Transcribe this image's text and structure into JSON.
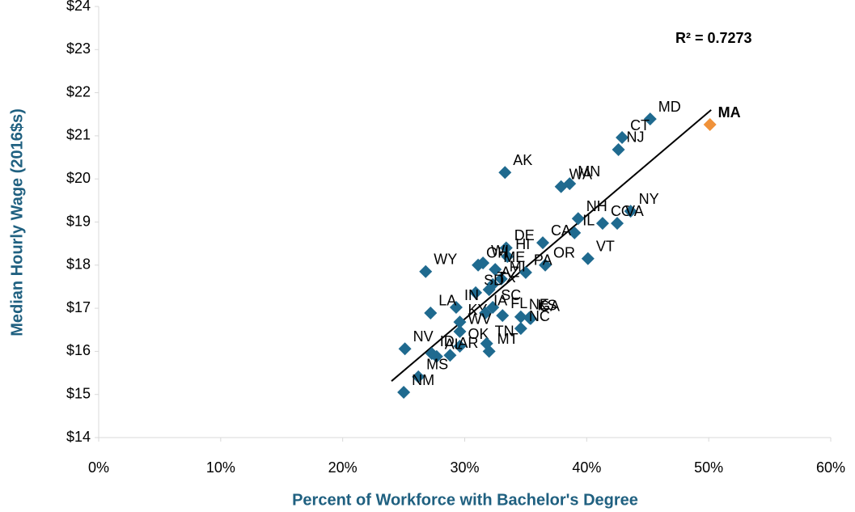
{
  "chart_data": {
    "type": "scatter",
    "xlabel": "Percent of Workforce with Bachelor's Degree",
    "ylabel": "Median Hourly Wage (2016$s)",
    "annotation": "R² = 0.7273",
    "xlim": [
      0,
      60
    ],
    "ylim": [
      14,
      24
    ],
    "xticks": [
      {
        "value": 0,
        "label": "0%"
      },
      {
        "value": 10,
        "label": "10%"
      },
      {
        "value": 20,
        "label": "20%"
      },
      {
        "value": 30,
        "label": "30%"
      },
      {
        "value": 40,
        "label": "40%"
      },
      {
        "value": 50,
        "label": "50%"
      },
      {
        "value": 60,
        "label": "60%"
      }
    ],
    "yticks": [
      {
        "value": 14,
        "label": "$14"
      },
      {
        "value": 15,
        "label": "$15"
      },
      {
        "value": 16,
        "label": "$16"
      },
      {
        "value": 17,
        "label": "$17"
      },
      {
        "value": 18,
        "label": "$18"
      },
      {
        "value": 19,
        "label": "$19"
      },
      {
        "value": 20,
        "label": "$20"
      },
      {
        "value": 21,
        "label": "$21"
      },
      {
        "value": 22,
        "label": "$22"
      },
      {
        "value": 23,
        "label": "$23"
      },
      {
        "value": 24,
        "label": "$24"
      }
    ],
    "trendline": {
      "x": [
        24.0,
        50.2
      ],
      "y": [
        15.31,
        21.6
      ],
      "color": "#000000"
    },
    "series": [
      {
        "color": "#1f6a8f",
        "labels": [
          "MD",
          "CT",
          "NJ",
          "AK",
          "WA",
          "MN",
          "NH",
          "CO",
          "NY",
          "VA",
          "IL",
          "CA",
          "DE",
          "HI",
          "OR",
          "PA",
          "VT",
          "WI",
          "WY",
          "OH",
          "ME",
          "MI",
          "AZ",
          "SD",
          "TX",
          "SC",
          "IN",
          "LA",
          "KY",
          "IA",
          "FL",
          "NE",
          "KS",
          "GA",
          "NC",
          "WV",
          "NV",
          "ID",
          "OK",
          "AL",
          "AR",
          "TN",
          "MT",
          "MS",
          "NM"
        ],
        "x": [
          45.2,
          42.9,
          42.6,
          33.3,
          37.9,
          38.6,
          39.3,
          41.3,
          43.6,
          42.5,
          39.0,
          36.4,
          33.4,
          33.5,
          36.6,
          35.0,
          40.1,
          31.5,
          26.8,
          31.1,
          32.5,
          33.0,
          32.3,
          30.9,
          32.0,
          32.3,
          29.3,
          27.2,
          29.6,
          31.7,
          33.1,
          34.6,
          35.3,
          35.4,
          34.6,
          29.6,
          25.1,
          27.3,
          29.6,
          27.7,
          28.8,
          31.8,
          32.0,
          26.2,
          25.0
        ],
        "y": [
          21.39,
          20.96,
          20.68,
          20.15,
          19.82,
          19.89,
          19.08,
          18.97,
          19.25,
          18.97,
          18.75,
          18.52,
          18.4,
          18.2,
          18.0,
          17.83,
          18.15,
          18.05,
          17.85,
          18.0,
          17.9,
          17.68,
          17.55,
          17.36,
          17.43,
          17.02,
          17.02,
          16.89,
          16.68,
          16.89,
          16.83,
          16.8,
          16.78,
          16.76,
          16.53,
          16.46,
          16.06,
          15.95,
          16.12,
          15.88,
          15.91,
          16.18,
          16.0,
          15.41,
          15.05
        ]
      },
      {
        "color": "#f0923a",
        "labels": [
          "MA"
        ],
        "x": [
          50.1
        ],
        "y": [
          21.26
        ]
      }
    ]
  }
}
